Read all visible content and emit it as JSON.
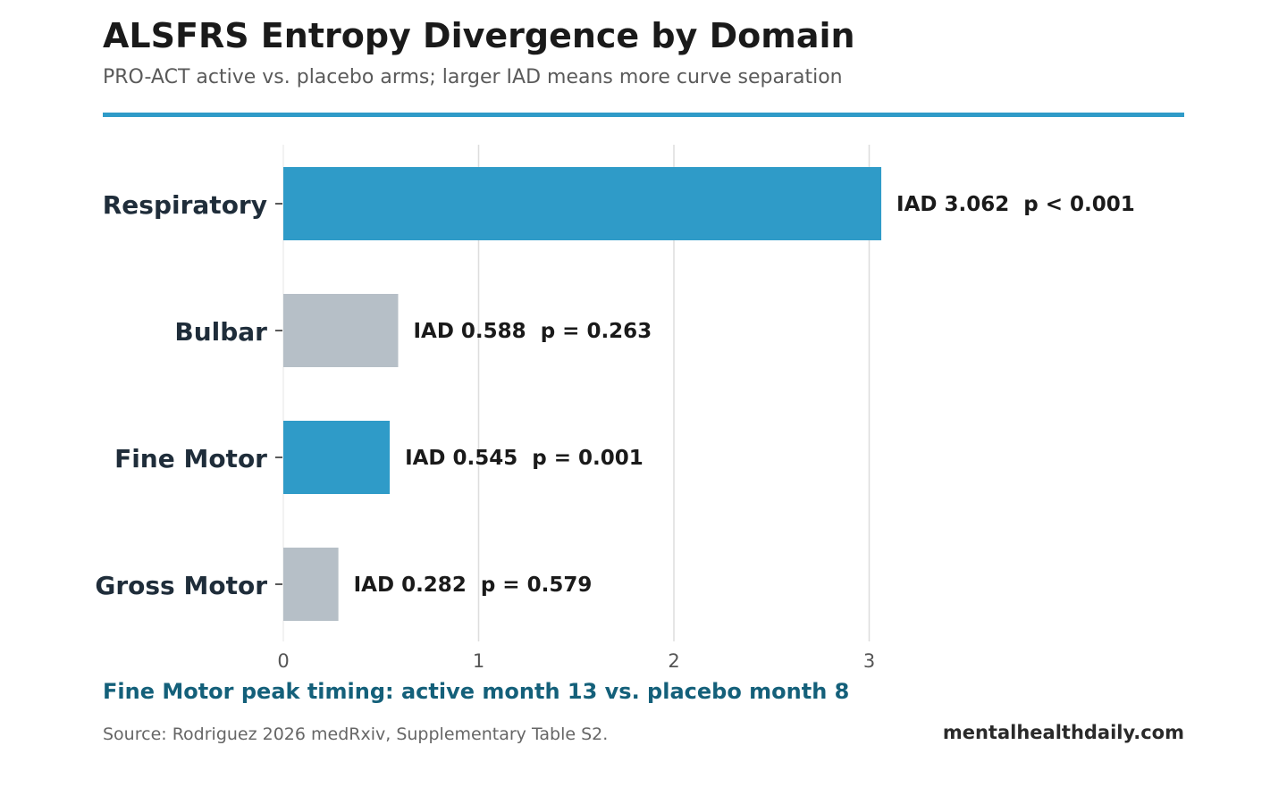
{
  "header": {
    "title": "ALSFRS Entropy Divergence by Domain",
    "subtitle": "PRO-ACT active vs. placebo arms; larger IAD means more curve separation"
  },
  "colors": {
    "accent": "#2f9bc8",
    "muted": "#b6bfc7",
    "annotation": "#14607a",
    "grid": "#dddddd",
    "label": "#1f2d3a"
  },
  "chart_data": {
    "type": "bar",
    "orientation": "horizontal",
    "categories": [
      "Respiratory",
      "Bulbar",
      "Fine Motor",
      "Gross Motor"
    ],
    "values": [
      3.062,
      0.588,
      0.545,
      0.282
    ],
    "significant": [
      true,
      false,
      true,
      false
    ],
    "bar_labels": [
      "IAD 3.062  p < 0.001",
      "IAD 0.588  p = 0.263",
      "IAD 0.545  p = 0.001",
      "IAD 0.282  p = 0.579"
    ],
    "x_ticks": [
      0,
      1,
      2,
      3
    ],
    "xlim": [
      0,
      4.6
    ],
    "grid": "vertical",
    "xlabel": "",
    "ylabel": ""
  },
  "footer": {
    "annotation": "Fine Motor peak timing: active month 13 vs. placebo month 8",
    "source": "Source: Rodriguez 2026 medRxiv, Supplementary Table S2.",
    "brand": "mentalhealthdaily.com"
  }
}
